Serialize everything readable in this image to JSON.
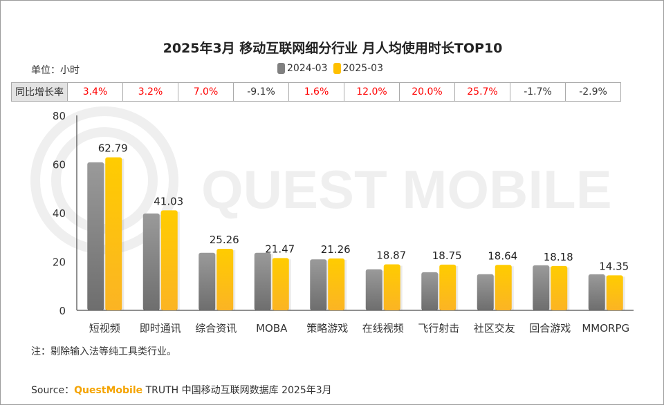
{
  "title": "2025年3月 移动互联网细分行业 月人均使用时长TOP10",
  "unit_label": "单位：小时",
  "growth_row": {
    "header": "同比增长率",
    "values": [
      "3.4%",
      "3.2%",
      "7.0%",
      "-9.1%",
      "1.6%",
      "12.0%",
      "20.0%",
      "25.7%",
      "-1.7%",
      "-2.9%"
    ],
    "positive_color": "#ff0000",
    "negative_color": "#333333"
  },
  "note": "注：剔除输入法等纯工具类行业。",
  "source": {
    "prefix": "Source：",
    "brand": "QuestMobile",
    "text": " TRUTH 中国移动互联网数据库 2025年3月"
  },
  "watermark": "QUEST MOBILE",
  "chart_data": {
    "type": "bar",
    "categories": [
      "短视频",
      "即时通讯",
      "综合资讯",
      "MOBA",
      "策略游戏",
      "在线视频",
      "飞行射击",
      "社区交友",
      "回合游戏",
      "MMORPG"
    ],
    "series": [
      {
        "name": "2024-03",
        "color": "#808080",
        "values": [
          60.73,
          39.76,
          23.61,
          23.62,
          20.93,
          16.85,
          15.63,
          14.83,
          18.49,
          14.78
        ]
      },
      {
        "name": "2025-03",
        "color": "#ffc000",
        "values": [
          62.79,
          41.03,
          25.26,
          21.47,
          21.26,
          18.87,
          18.75,
          18.64,
          18.18,
          14.35
        ],
        "labels": [
          "62.79",
          "41.03",
          "25.26",
          "21.47",
          "21.26",
          "18.87",
          "18.75",
          "18.64",
          "18.18",
          "14.35"
        ]
      }
    ],
    "yticks": [
      "0",
      "20",
      "40",
      "60",
      "80"
    ],
    "ylim": [
      0,
      80
    ],
    "legend": "top-center",
    "grid": false
  }
}
